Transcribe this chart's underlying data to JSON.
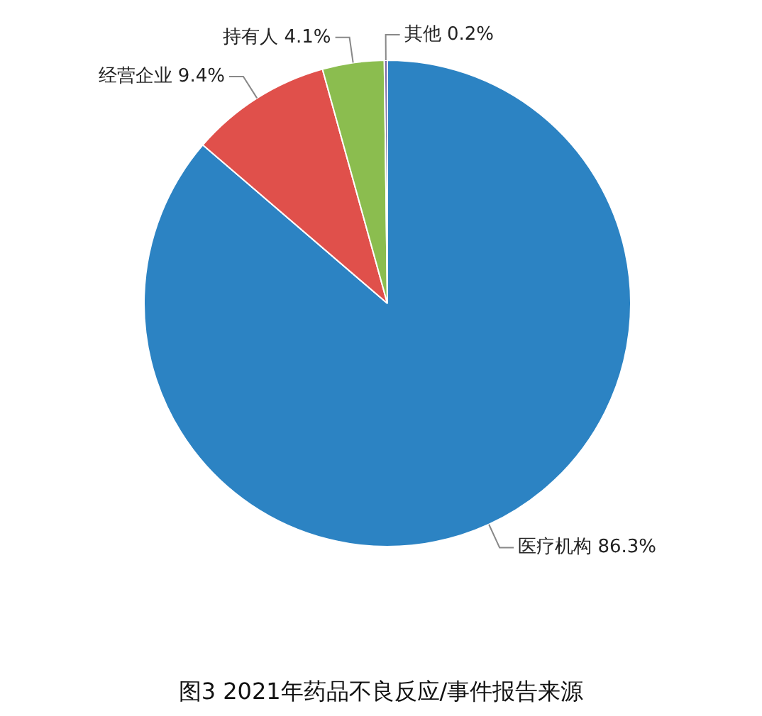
{
  "chart_data": {
    "type": "pie",
    "title": "图3  2021年药品不良反应/事件报告来源",
    "categories": [
      "医疗机构",
      "经营企业",
      "持有人",
      "其他"
    ],
    "values": [
      86.3,
      9.4,
      4.1,
      0.2
    ],
    "value_labels": [
      "86.3%",
      "9.4%",
      "4.1%",
      "0.2%"
    ],
    "colors": [
      "#2c83c3",
      "#e0504b",
      "#8bbd4f",
      "#7b68a6"
    ],
    "legend": false
  }
}
